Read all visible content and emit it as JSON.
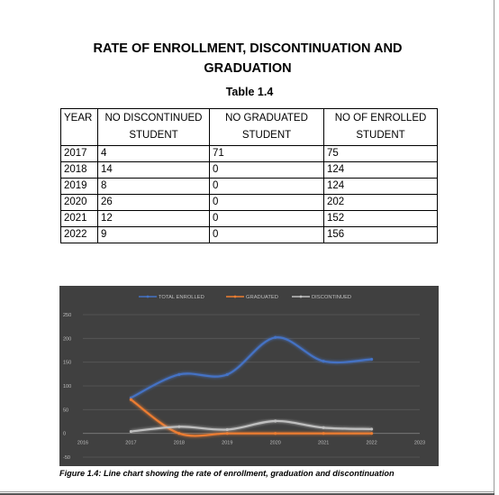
{
  "document": {
    "title_line1": "RATE OF ENROLLMENT, DISCONTINUATION AND",
    "title_line2": "GRADUATION",
    "table_caption": "Table 1.4",
    "figure_caption": "Figure 1.4: Line chart showing the rate of enrollment, graduation and discontinuation"
  },
  "table": {
    "headers": [
      "YEAR",
      "NO DISCONTINUED STUDENT",
      "NO GRADUATED STUDENT",
      "NO OF ENROLLED STUDENT"
    ],
    "rows": [
      [
        "2017",
        "4",
        "71",
        "75"
      ],
      [
        "2018",
        "14",
        "0",
        "124"
      ],
      [
        "2019",
        "8",
        "0",
        "124"
      ],
      [
        "2020",
        "26",
        "0",
        "202"
      ],
      [
        "2021",
        "12",
        "0",
        "152"
      ],
      [
        "2022",
        "9",
        "0",
        "156"
      ]
    ]
  },
  "chart_data": {
    "type": "line",
    "x": [
      2017,
      2018,
      2019,
      2020,
      2021,
      2022
    ],
    "series": [
      {
        "name": "TOTAL ENROLLED",
        "values": [
          75,
          124,
          124,
          202,
          152,
          156
        ],
        "color": "#4472c4"
      },
      {
        "name": "GRADUATED",
        "values": [
          71,
          0,
          0,
          0,
          0,
          0
        ],
        "color": "#ed7d31"
      },
      {
        "name": "DISCONTINUED",
        "values": [
          4,
          14,
          8,
          26,
          12,
          9
        ],
        "color": "#bfbfbf"
      }
    ],
    "x_ticks": [
      "2016",
      "2017",
      "2018",
      "2019",
      "2020",
      "2021",
      "2022",
      "2023"
    ],
    "y_ticks": [
      "-50",
      "0",
      "50",
      "100",
      "150",
      "200",
      "250"
    ],
    "xlim": [
      2016,
      2023
    ],
    "ylim": [
      -50,
      250
    ],
    "grid": true,
    "legend_position": "top",
    "smooth": true,
    "background": "#404040"
  }
}
